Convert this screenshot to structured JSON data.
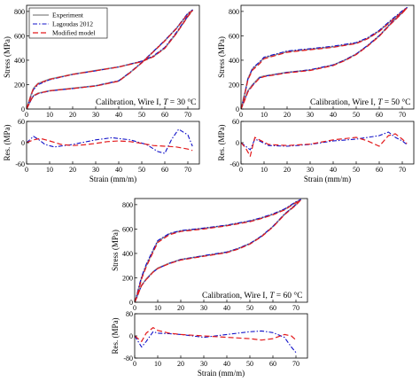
{
  "legend": [
    {
      "key": "exp",
      "label": "Experiment",
      "color": "#999999",
      "dash": "",
      "width": 1.6
    },
    {
      "key": "lag",
      "label": "Lagoudas 2012",
      "color": "#1010c8",
      "dash": "5,2,1.5,2",
      "width": 1.1
    },
    {
      "key": "mod",
      "label": "Modified model",
      "color": "#e31a1c",
      "dash": "6,3",
      "width": 1.2
    }
  ],
  "labels": {
    "stress": "Stress (MPa)",
    "res": "Res. (MPa)",
    "strain": "Strain (mm/m)"
  },
  "annotations": {
    "p1": {
      "prefix": "Calibration, Wire I,",
      "T": "T",
      "value": "= 30 °C"
    },
    "p2": {
      "prefix": "Calibration, Wire I,",
      "T": "T",
      "value": "= 50 °C"
    },
    "p3": {
      "prefix": "Calibration, Wire I,",
      "T": "T",
      "value": "= 60 °C"
    }
  },
  "chart_data": [
    {
      "type": "line",
      "panel": "30C-stress",
      "ylabel": "Stress (MPa)",
      "xlim": [
        0,
        75
      ],
      "ylim": [
        0,
        850
      ],
      "xticks": [
        0,
        10,
        20,
        30,
        40,
        50,
        60,
        70
      ],
      "yticks": [
        0,
        200,
        400,
        600,
        800
      ],
      "series": [
        {
          "name": "Experiment",
          "x": [
            0,
            1,
            2,
            3,
            5,
            10,
            20,
            30,
            40,
            50,
            55,
            60,
            65,
            70,
            72,
            70,
            65,
            60,
            55,
            50,
            45,
            40,
            30,
            20,
            10,
            5,
            3,
            2,
            1,
            0
          ],
          "y": [
            0,
            60,
            120,
            170,
            210,
            245,
            285,
            315,
            345,
            390,
            430,
            500,
            620,
            760,
            810,
            780,
            660,
            560,
            470,
            380,
            300,
            230,
            190,
            170,
            150,
            130,
            110,
            80,
            40,
            0
          ]
        },
        {
          "name": "Lagoudas 2012",
          "x": [
            0,
            1,
            2,
            3,
            5,
            10,
            20,
            30,
            40,
            50,
            55,
            60,
            65,
            70,
            72,
            70,
            65,
            60,
            55,
            50,
            45,
            40,
            30,
            20,
            10,
            5,
            3,
            2,
            1,
            0
          ],
          "y": [
            0,
            55,
            110,
            160,
            200,
            240,
            283,
            313,
            345,
            393,
            435,
            505,
            628,
            765,
            812,
            785,
            662,
            562,
            472,
            382,
            302,
            232,
            190,
            168,
            148,
            126,
            106,
            76,
            36,
            0
          ]
        },
        {
          "name": "Modified model",
          "x": [
            0,
            1,
            2,
            3,
            5,
            10,
            20,
            30,
            40,
            50,
            55,
            60,
            65,
            70,
            72,
            70,
            65,
            60,
            55,
            50,
            45,
            40,
            30,
            20,
            10,
            5,
            3,
            2,
            1,
            0
          ],
          "y": [
            0,
            58,
            118,
            168,
            208,
            243,
            284,
            314,
            344,
            388,
            428,
            498,
            618,
            758,
            806,
            778,
            658,
            558,
            468,
            378,
            298,
            228,
            188,
            168,
            150,
            128,
            108,
            78,
            38,
            0
          ]
        }
      ]
    },
    {
      "type": "line",
      "panel": "30C-residual",
      "ylabel": "Res. (MPa)",
      "xlabel": "Strain (mm/m)",
      "xlim": [
        0,
        75
      ],
      "ylim": [
        -60,
        60
      ],
      "xticks": [
        0,
        10,
        20,
        30,
        40,
        50,
        60,
        70
      ],
      "yticks": [
        -60,
        0,
        60
      ],
      "series": [
        {
          "name": "Lagoudas 2012",
          "x": [
            0,
            3,
            5,
            8,
            12,
            20,
            30,
            37,
            45,
            52,
            57,
            60,
            63,
            66,
            70,
            72
          ],
          "y": [
            0,
            18,
            10,
            -5,
            -12,
            -5,
            8,
            14,
            8,
            -5,
            -25,
            -30,
            10,
            38,
            22,
            -10
          ]
        },
        {
          "name": "Modified model",
          "x": [
            0,
            3,
            6,
            10,
            15,
            20,
            25,
            30,
            35,
            40,
            45,
            50,
            55,
            60,
            65,
            70,
            72
          ],
          "y": [
            0,
            8,
            12,
            5,
            -5,
            -8,
            -6,
            -2,
            3,
            5,
            3,
            -2,
            -8,
            -10,
            -12,
            -18,
            -22
          ]
        }
      ]
    },
    {
      "type": "line",
      "panel": "50C-stress",
      "ylabel": "Stress (MPa)",
      "xlim": [
        0,
        75
      ],
      "ylim": [
        0,
        850
      ],
      "xticks": [
        0,
        10,
        20,
        30,
        40,
        50,
        60,
        70
      ],
      "yticks": [
        0,
        200,
        400,
        600,
        800
      ],
      "series": [
        {
          "name": "Experiment",
          "x": [
            0,
            1,
            2,
            3,
            5,
            8,
            10,
            20,
            30,
            40,
            50,
            55,
            60,
            65,
            70,
            72,
            70,
            65,
            60,
            55,
            50,
            45,
            40,
            30,
            20,
            10,
            8,
            5,
            3,
            2,
            1,
            0
          ],
          "y": [
            0,
            80,
            160,
            250,
            330,
            380,
            420,
            470,
            490,
            510,
            540,
            580,
            640,
            720,
            800,
            830,
            790,
            700,
            600,
            520,
            450,
            400,
            360,
            320,
            300,
            270,
            260,
            200,
            150,
            100,
            50,
            0
          ]
        },
        {
          "name": "Lagoudas 2012",
          "x": [
            0,
            1,
            2,
            3,
            5,
            8,
            10,
            20,
            30,
            40,
            50,
            55,
            60,
            65,
            70,
            72,
            70,
            65,
            60,
            55,
            50,
            45,
            40,
            30,
            20,
            10,
            8,
            5,
            3,
            2,
            1,
            0
          ],
          "y": [
            0,
            75,
            155,
            245,
            335,
            385,
            425,
            475,
            495,
            515,
            545,
            585,
            645,
            728,
            805,
            832,
            792,
            702,
            602,
            522,
            452,
            402,
            362,
            322,
            300,
            268,
            255,
            195,
            145,
            95,
            45,
            0
          ]
        },
        {
          "name": "Modified model",
          "x": [
            0,
            1,
            2,
            3,
            5,
            8,
            10,
            20,
            30,
            40,
            50,
            55,
            60,
            65,
            70,
            72,
            70,
            65,
            60,
            55,
            50,
            45,
            40,
            30,
            20,
            10,
            8,
            5,
            3,
            2,
            1,
            0
          ],
          "y": [
            0,
            70,
            150,
            240,
            320,
            370,
            412,
            465,
            486,
            506,
            536,
            576,
            636,
            716,
            796,
            826,
            786,
            696,
            596,
            516,
            446,
            396,
            356,
            316,
            296,
            265,
            252,
            190,
            140,
            90,
            42,
            0
          ]
        }
      ]
    },
    {
      "type": "line",
      "panel": "50C-residual",
      "ylabel": "Res. (MPa)",
      "xlabel": "Strain (mm/m)",
      "xlim": [
        0,
        75
      ],
      "ylim": [
        -60,
        60
      ],
      "xticks": [
        0,
        10,
        20,
        30,
        40,
        50,
        60,
        70
      ],
      "yticks": [
        -60,
        0,
        60
      ],
      "series": [
        {
          "name": "Lagoudas 2012",
          "x": [
            0,
            2,
            4,
            6,
            8,
            12,
            20,
            30,
            40,
            50,
            55,
            60,
            64,
            67,
            70,
            72
          ],
          "y": [
            0,
            -10,
            -20,
            10,
            5,
            -8,
            -10,
            -5,
            5,
            10,
            15,
            20,
            30,
            15,
            5,
            -5
          ]
        },
        {
          "name": "Modified model",
          "x": [
            0,
            2,
            4,
            6,
            8,
            12,
            20,
            30,
            40,
            50,
            55,
            60,
            64,
            67,
            70,
            72
          ],
          "y": [
            0,
            -15,
            -38,
            15,
            8,
            -5,
            -8,
            -4,
            8,
            15,
            5,
            -10,
            20,
            25,
            10,
            -2
          ]
        }
      ]
    },
    {
      "type": "line",
      "panel": "60C-stress",
      "ylabel": "Stress (MPa)",
      "xlim": [
        0,
        75
      ],
      "ylim": [
        0,
        850
      ],
      "xticks": [
        0,
        10,
        20,
        30,
        40,
        50,
        60,
        70
      ],
      "yticks": [
        0,
        200,
        400,
        600,
        800
      ],
      "series": [
        {
          "name": "Experiment",
          "x": [
            0,
            1,
            2,
            3,
            5,
            8,
            10,
            15,
            20,
            30,
            40,
            50,
            55,
            60,
            65,
            70,
            72,
            70,
            65,
            60,
            55,
            50,
            45,
            40,
            30,
            20,
            15,
            10,
            8,
            5,
            3,
            2,
            1,
            0
          ],
          "y": [
            0,
            60,
            130,
            200,
            300,
            420,
            500,
            560,
            585,
            605,
            630,
            665,
            690,
            720,
            760,
            820,
            840,
            800,
            720,
            620,
            540,
            480,
            440,
            410,
            380,
            350,
            320,
            280,
            250,
            190,
            140,
            95,
            45,
            0
          ]
        },
        {
          "name": "Lagoudas 2012",
          "x": [
            0,
            1,
            2,
            3,
            5,
            8,
            10,
            15,
            20,
            30,
            40,
            50,
            55,
            60,
            65,
            70,
            72,
            70,
            65,
            60,
            55,
            50,
            45,
            40,
            30,
            20,
            15,
            10,
            8,
            5,
            3,
            2,
            1,
            0
          ],
          "y": [
            0,
            65,
            140,
            210,
            310,
            430,
            505,
            563,
            588,
            608,
            632,
            668,
            693,
            724,
            764,
            824,
            842,
            802,
            722,
            622,
            542,
            482,
            442,
            412,
            382,
            350,
            318,
            276,
            246,
            186,
            136,
            92,
            42,
            0
          ]
        },
        {
          "name": "Modified model",
          "x": [
            0,
            1,
            2,
            3,
            5,
            8,
            10,
            15,
            20,
            30,
            40,
            50,
            55,
            60,
            65,
            70,
            72,
            70,
            65,
            60,
            55,
            50,
            45,
            40,
            30,
            20,
            15,
            10,
            8,
            5,
            3,
            2,
            1,
            0
          ],
          "y": [
            0,
            55,
            120,
            190,
            290,
            410,
            490,
            553,
            580,
            600,
            626,
            660,
            686,
            716,
            756,
            816,
            836,
            796,
            716,
            616,
            536,
            476,
            436,
            406,
            376,
            346,
            316,
            276,
            246,
            186,
            136,
            92,
            42,
            0
          ]
        }
      ]
    },
    {
      "type": "line",
      "panel": "60C-residual",
      "ylabel": "Res. (MPa)",
      "xlabel": "Strain (mm/m)",
      "xlim": [
        0,
        75
      ],
      "ylim": [
        -80,
        80
      ],
      "xticks": [
        0,
        10,
        20,
        30,
        40,
        50,
        60,
        70
      ],
      "yticks": [
        -80,
        0,
        80
      ],
      "series": [
        {
          "name": "Lagoudas 2012",
          "x": [
            0,
            3,
            5,
            8,
            10,
            15,
            20,
            30,
            40,
            50,
            55,
            60,
            65,
            68,
            70
          ],
          "y": [
            0,
            -40,
            -20,
            15,
            10,
            8,
            5,
            -5,
            5,
            15,
            18,
            12,
            -5,
            -40,
            -60
          ]
        },
        {
          "name": "Modified model",
          "x": [
            0,
            3,
            5,
            8,
            10,
            15,
            20,
            30,
            40,
            50,
            55,
            60,
            65,
            68,
            70
          ],
          "y": [
            0,
            -20,
            10,
            30,
            20,
            10,
            5,
            0,
            -5,
            -10,
            -15,
            -10,
            5,
            0,
            -15
          ]
        }
      ]
    }
  ]
}
